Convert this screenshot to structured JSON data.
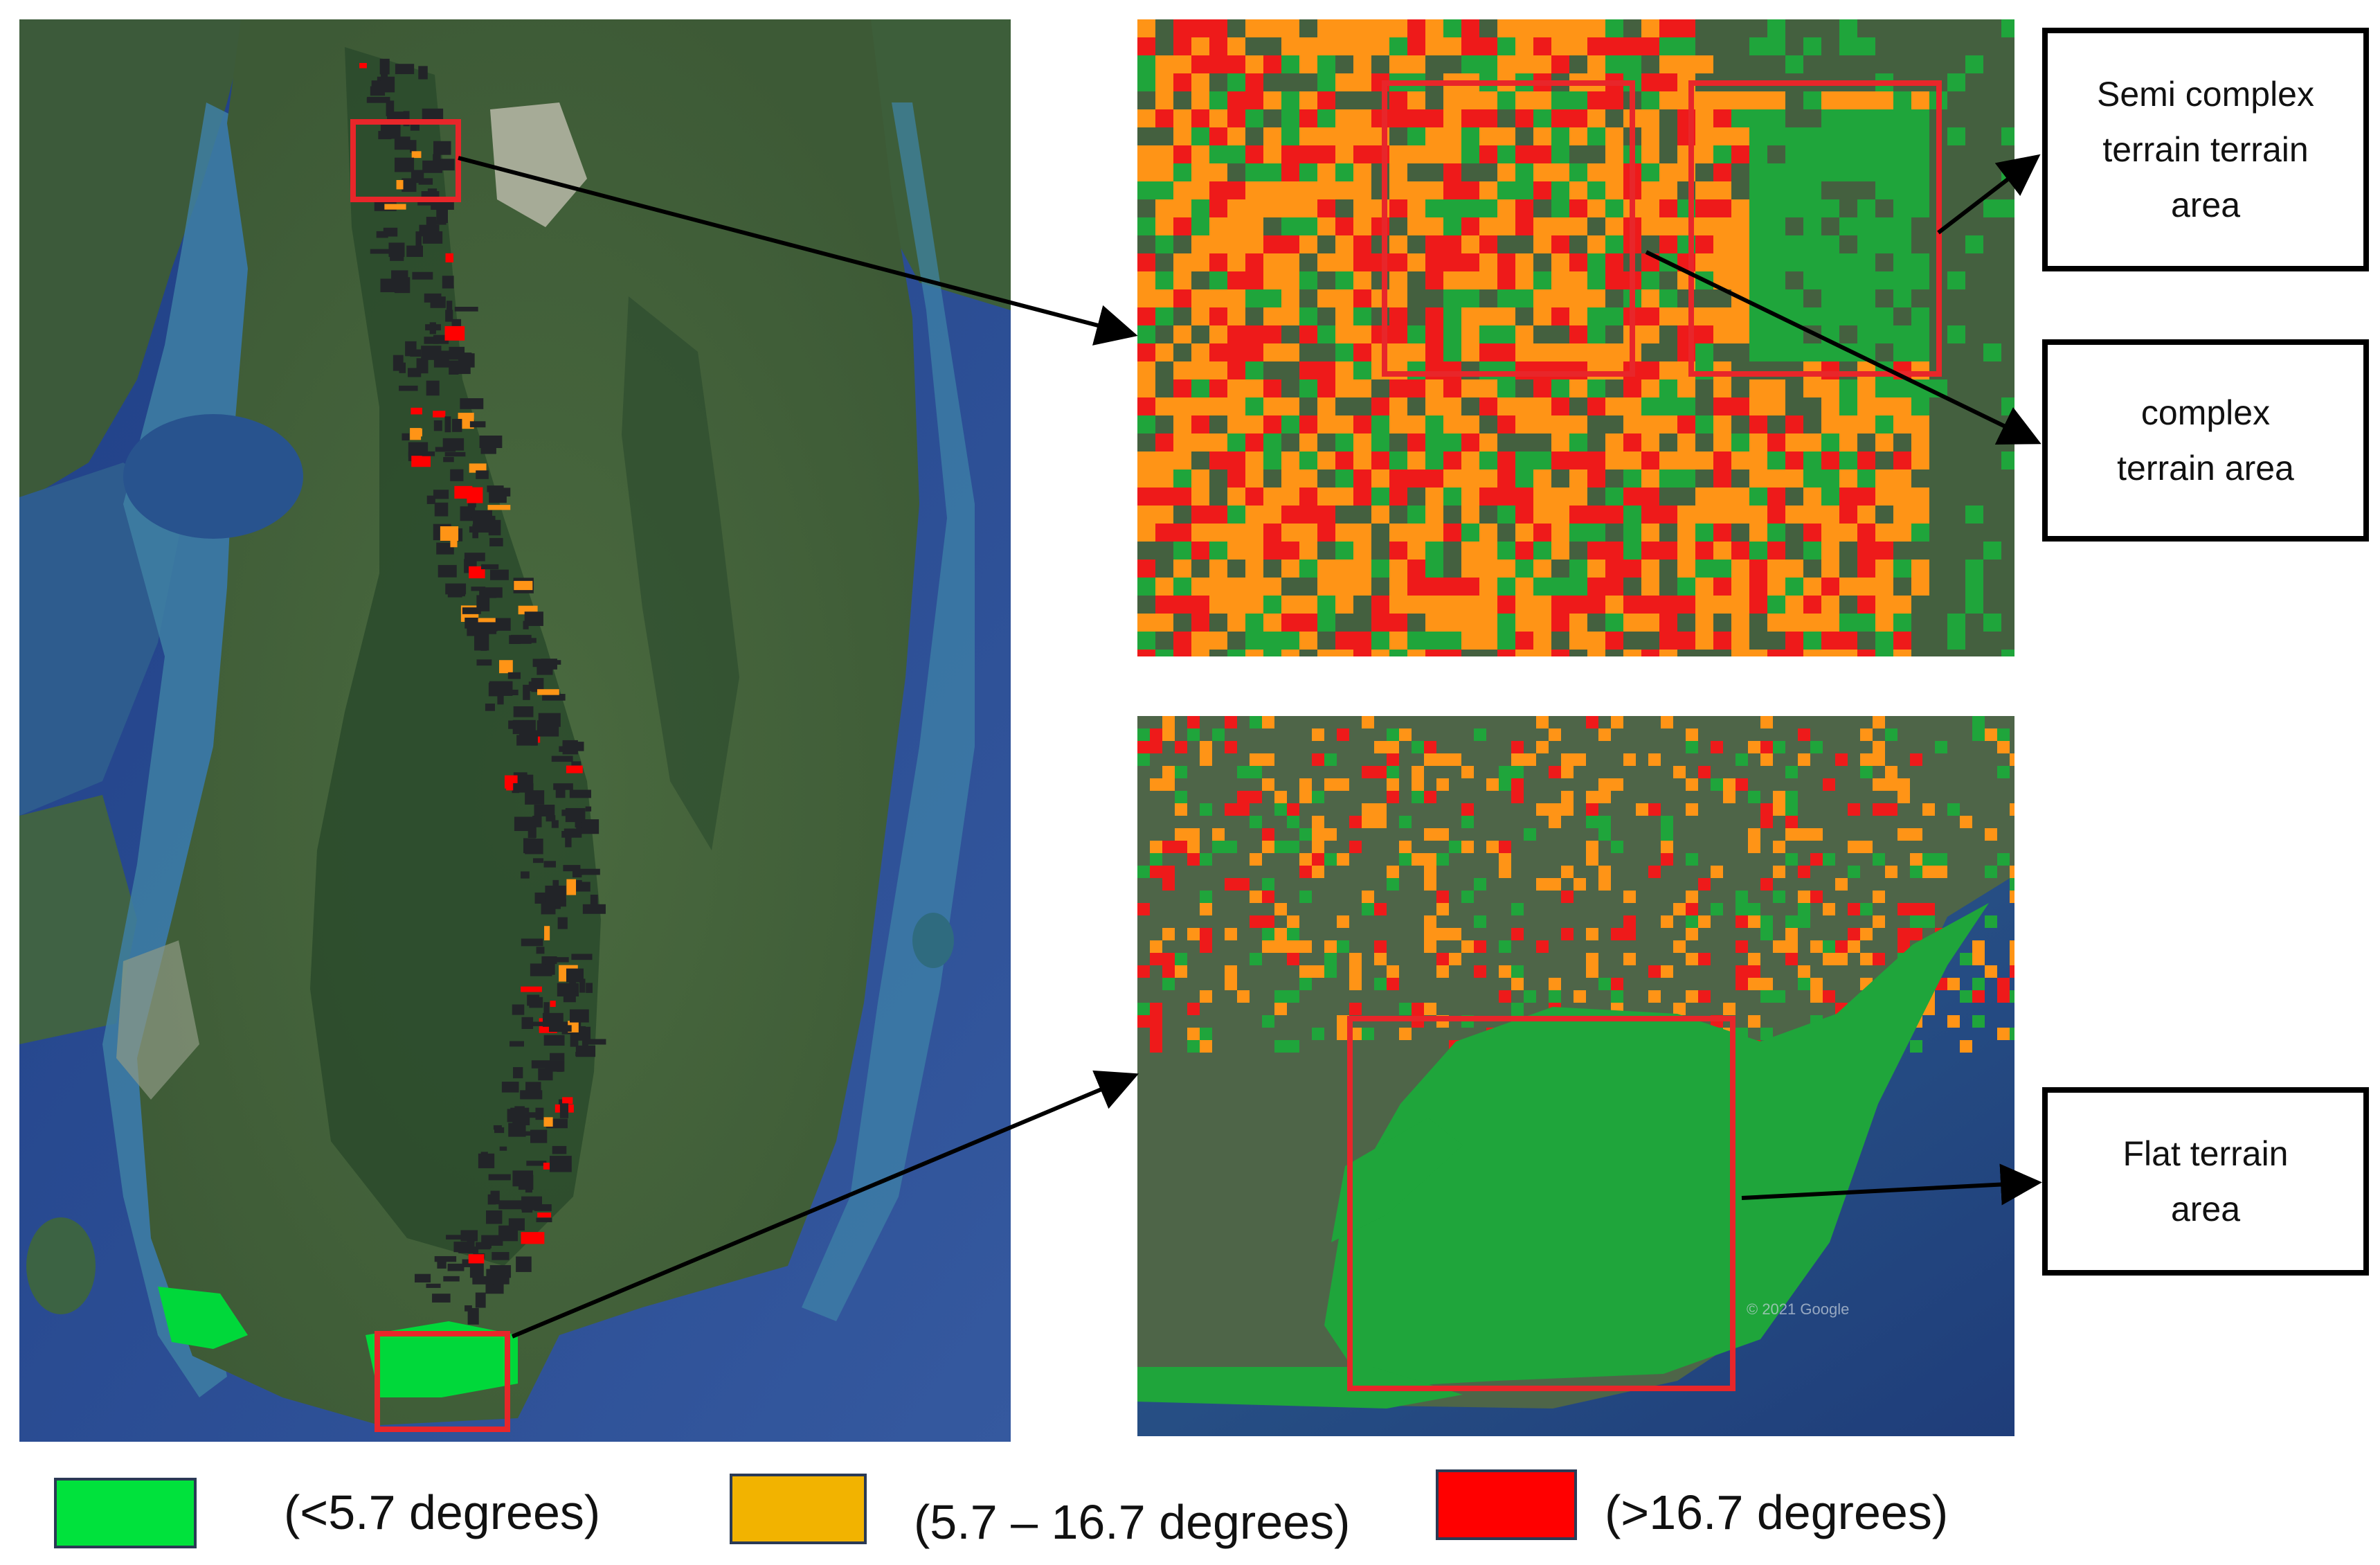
{
  "colors": {
    "gentle_slope": "#00e23c",
    "moderate_slope": "#f2b300",
    "steep_slope": "#ff0000",
    "highlight_box": "#e8262a",
    "arrow": "#000000",
    "ocean_deep": "#2a4f93",
    "ocean_shallow": "#3e8aa6",
    "land": "#3f6139",
    "dense_forest": "#24402a",
    "satellite_green": "#1fa53b",
    "satellite_orange": "#ff9416",
    "satellite_red": "#ee1a1a"
  },
  "callouts": {
    "semi_complex": "Semi complex\nterrain terrain\narea",
    "complex": "complex\nterrain area",
    "flat": "Flat terrain\narea"
  },
  "legend": [
    {
      "label": "(<5.7 degrees)",
      "color": "#00e23c"
    },
    {
      "label": "(5.7 – 16.7 degrees)",
      "color": "#f2b300"
    },
    {
      "label": "(>16.7 degrees)",
      "color": "#ff0000"
    }
  ],
  "watermark": "© 2021 Google"
}
